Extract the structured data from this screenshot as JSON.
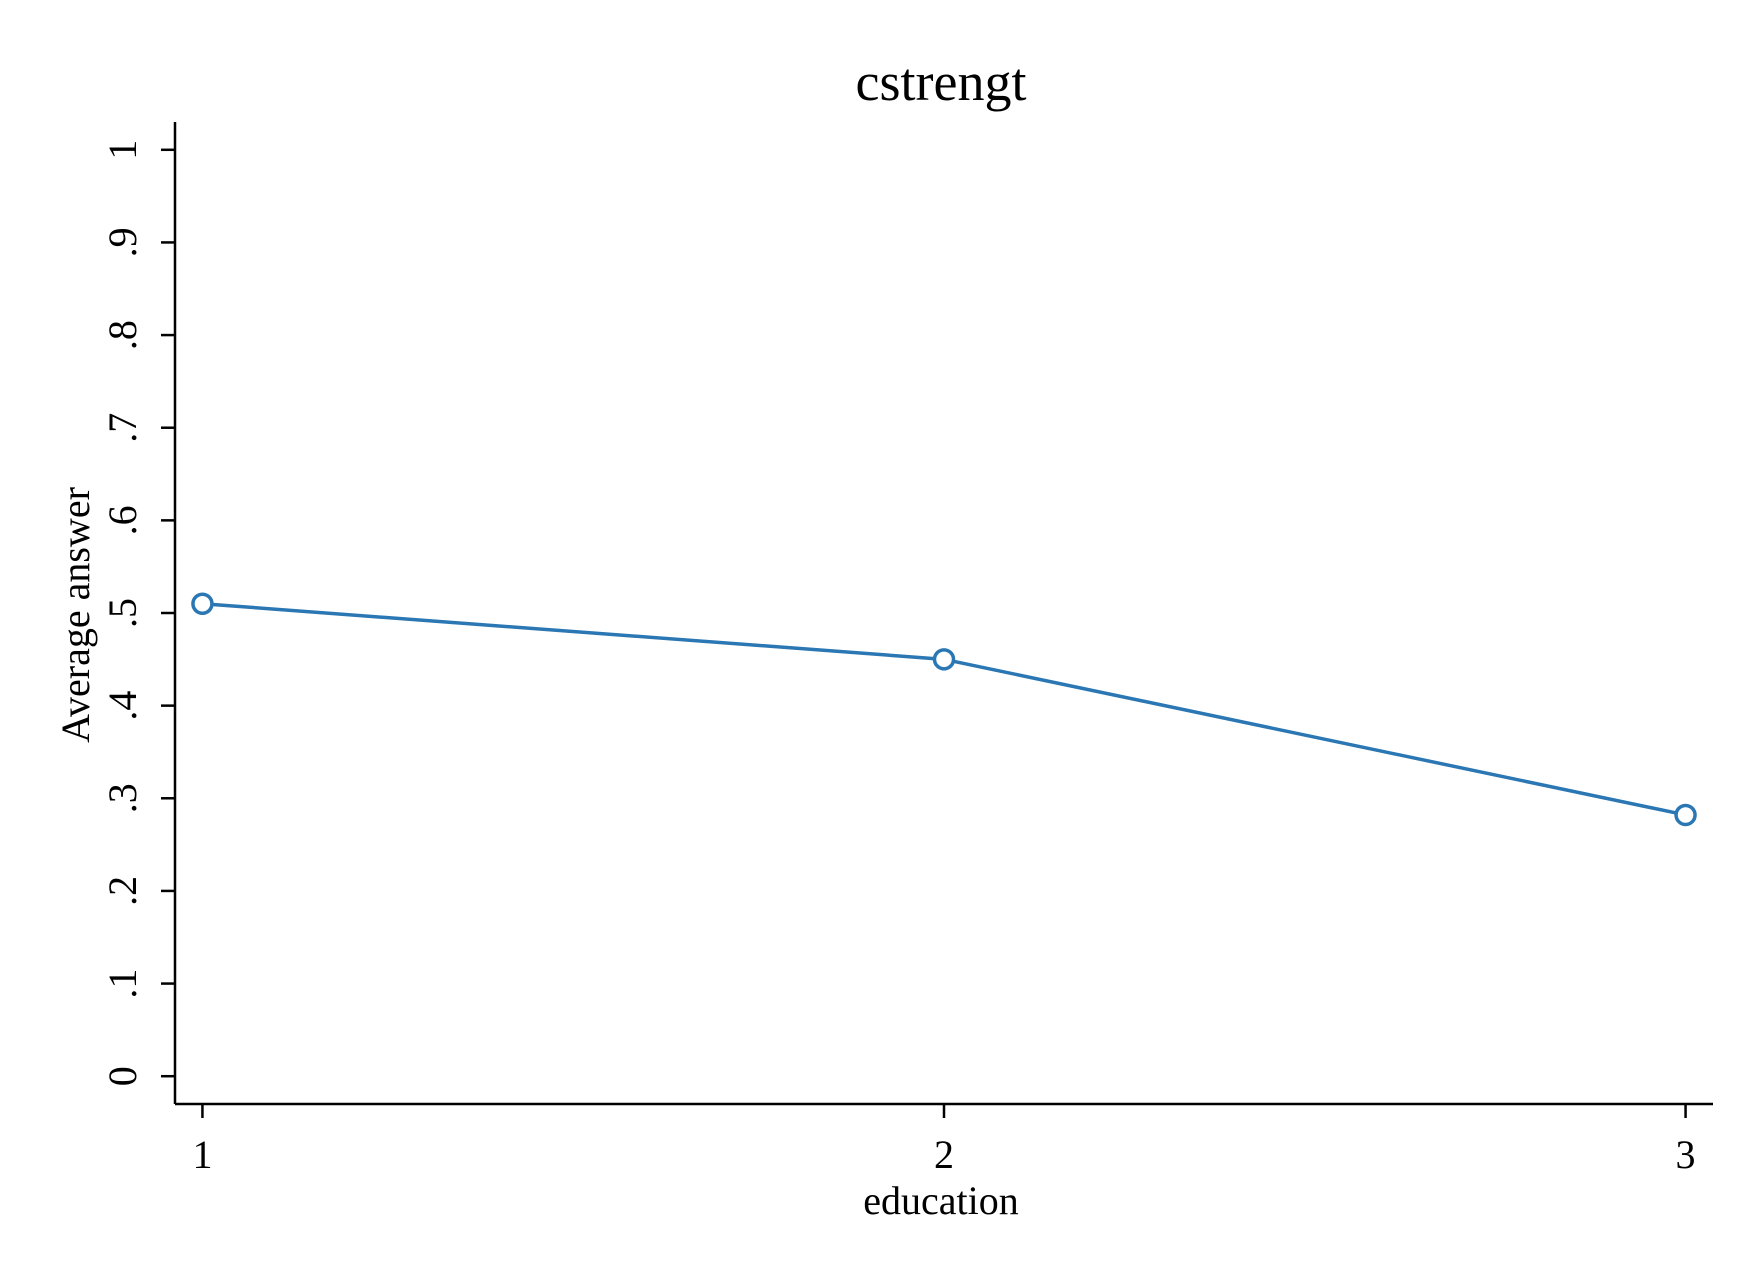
{
  "chart_data": {
    "type": "line",
    "title": "cstrengt",
    "xlabel": "education",
    "ylabel": "Average answer",
    "x": [
      1,
      2,
      3
    ],
    "xticks": [
      1,
      2,
      3
    ],
    "xtick_labels": [
      "1",
      "2",
      "3"
    ],
    "xlim": [
      0.963,
      3.037
    ],
    "yticks": [
      0,
      0.1,
      0.2,
      0.3,
      0.4,
      0.5,
      0.6,
      0.7,
      0.8,
      0.9,
      1
    ],
    "ytick_labels": [
      "0",
      ".1",
      ".2",
      ".3",
      ".4",
      ".5",
      ".6",
      ".7",
      ".8",
      ".9",
      "1"
    ],
    "ylim": [
      -0.03,
      1.03
    ],
    "grid": false,
    "series": [
      {
        "values": [
          0.51,
          0.45,
          0.282
        ],
        "color": "#2a77b4",
        "marker": "hollow-circle"
      }
    ]
  }
}
